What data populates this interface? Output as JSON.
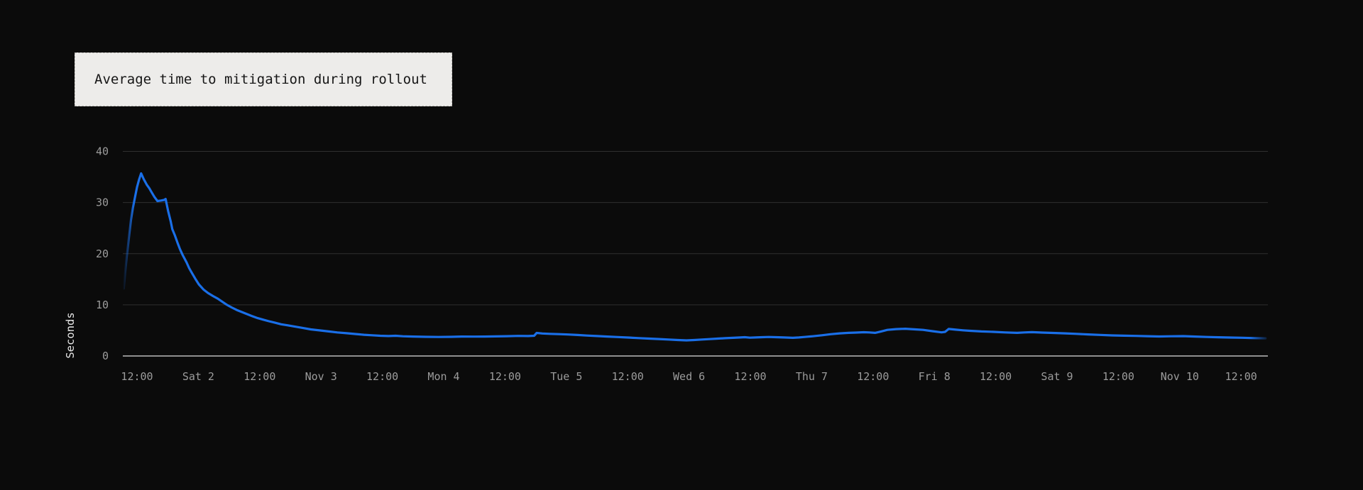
{
  "title_card": {
    "title": "Average time to mitigation during rollout"
  },
  "colors": {
    "background": "#0b0b0b",
    "line": "#1a6fe8",
    "gridline": "#2f2f2f",
    "axis_line": "#8f8f8f",
    "tick_text": "#9c9c9c",
    "axis_title_text": "#e8e8e8",
    "title_card_bg": "#edecea",
    "title_text": "#161616"
  },
  "chart_data": {
    "type": "line",
    "title": "Average time to mitigation during rollout",
    "xlabel": "",
    "ylabel": "Seconds",
    "ylim": [
      0,
      40
    ],
    "grid": true,
    "legend_position": "none",
    "y_ticks": [
      0,
      10,
      20,
      30,
      40
    ],
    "x_unit": "hours_since_first_tick",
    "x_tick_interval_hours": 12,
    "xlim": [
      -2.8,
      221.2
    ],
    "x_ticks": [
      {
        "t": 0,
        "label": "12:00"
      },
      {
        "t": 12,
        "label": "Sat 2"
      },
      {
        "t": 24,
        "label": "12:00"
      },
      {
        "t": 36,
        "label": "Nov 3"
      },
      {
        "t": 48,
        "label": "12:00"
      },
      {
        "t": 60,
        "label": "Mon 4"
      },
      {
        "t": 72,
        "label": "12:00"
      },
      {
        "t": 84,
        "label": "Tue 5"
      },
      {
        "t": 96,
        "label": "12:00"
      },
      {
        "t": 108,
        "label": "Wed 6"
      },
      {
        "t": 120,
        "label": "12:00"
      },
      {
        "t": 132,
        "label": "Thu 7"
      },
      {
        "t": 144,
        "label": "12:00"
      },
      {
        "t": 156,
        "label": "Fri 8"
      },
      {
        "t": 168,
        "label": "12:00"
      },
      {
        "t": 180,
        "label": "Sat 9"
      },
      {
        "t": 192,
        "label": "12:00"
      },
      {
        "t": 204,
        "label": "Nov 10"
      },
      {
        "t": 216,
        "label": "12:00"
      }
    ],
    "series": [
      {
        "name": "average-time-to-mitigation",
        "unit": "seconds",
        "color": "#1a6fe8",
        "points": [
          [
            -2.6,
            13.2
          ],
          [
            -2.3,
            16.5
          ],
          [
            -2.0,
            19.5
          ],
          [
            -1.6,
            23
          ],
          [
            -1.2,
            26.5
          ],
          [
            -0.8,
            29
          ],
          [
            -0.4,
            31
          ],
          [
            0,
            33
          ],
          [
            0.4,
            34.5
          ],
          [
            0.8,
            35.7
          ],
          [
            1.3,
            34.6
          ],
          [
            1.9,
            33.5
          ],
          [
            2.4,
            32.8
          ],
          [
            2.8,
            32.1
          ],
          [
            3.4,
            31.1
          ],
          [
            4,
            30.3
          ],
          [
            4.7,
            30.4
          ],
          [
            5.3,
            30.5
          ],
          [
            5.6,
            30.7
          ],
          [
            6.1,
            28.3
          ],
          [
            6.6,
            26.3
          ],
          [
            6.9,
            24.8
          ],
          [
            7.4,
            23.6
          ],
          [
            7.9,
            22.2
          ],
          [
            8.4,
            20.9
          ],
          [
            8.9,
            19.8
          ],
          [
            9.7,
            18.3
          ],
          [
            10.2,
            17.2
          ],
          [
            10.7,
            16.3
          ],
          [
            11.4,
            15.1
          ],
          [
            12.1,
            14.0
          ],
          [
            13,
            13.0
          ],
          [
            13.9,
            12.3
          ],
          [
            14.9,
            11.7
          ],
          [
            15.8,
            11.2
          ],
          [
            16.7,
            10.6
          ],
          [
            17.6,
            10.0
          ],
          [
            18.5,
            9.5
          ],
          [
            19.5,
            9.0
          ],
          [
            20.5,
            8.6
          ],
          [
            21.5,
            8.2
          ],
          [
            22.5,
            7.8
          ],
          [
            23.6,
            7.4
          ],
          [
            24.7,
            7.1
          ],
          [
            25.8,
            6.8
          ],
          [
            27,
            6.5
          ],
          [
            28.2,
            6.2
          ],
          [
            29.4,
            6.0
          ],
          [
            30.6,
            5.8
          ],
          [
            32.3,
            5.5
          ],
          [
            34,
            5.2
          ],
          [
            35.7,
            5.0
          ],
          [
            37.5,
            4.8
          ],
          [
            39.2,
            4.6
          ],
          [
            41,
            4.45
          ],
          [
            42.7,
            4.3
          ],
          [
            44.4,
            4.15
          ],
          [
            46,
            4.05
          ],
          [
            47.6,
            3.95
          ],
          [
            49.2,
            3.9
          ],
          [
            50.6,
            3.95
          ],
          [
            52,
            3.85
          ],
          [
            54,
            3.8
          ],
          [
            56.5,
            3.75
          ],
          [
            59,
            3.72
          ],
          [
            61.5,
            3.75
          ],
          [
            63.5,
            3.8
          ],
          [
            66,
            3.78
          ],
          [
            68,
            3.8
          ],
          [
            70,
            3.83
          ],
          [
            72.3,
            3.87
          ],
          [
            74.6,
            3.92
          ],
          [
            76.5,
            3.9
          ],
          [
            77.7,
            3.95
          ],
          [
            78.2,
            4.5
          ],
          [
            79.3,
            4.4
          ],
          [
            80.8,
            4.32
          ],
          [
            82.5,
            4.27
          ],
          [
            84.3,
            4.2
          ],
          [
            86.2,
            4.1
          ],
          [
            88,
            4.0
          ],
          [
            90,
            3.9
          ],
          [
            92,
            3.8
          ],
          [
            94.1,
            3.7
          ],
          [
            96.1,
            3.6
          ],
          [
            98.2,
            3.5
          ],
          [
            100.2,
            3.4
          ],
          [
            102.1,
            3.32
          ],
          [
            104,
            3.22
          ],
          [
            105.8,
            3.12
          ],
          [
            107.5,
            3.05
          ],
          [
            109,
            3.12
          ],
          [
            110.5,
            3.22
          ],
          [
            112,
            3.3
          ],
          [
            113.6,
            3.4
          ],
          [
            115.1,
            3.48
          ],
          [
            116.6,
            3.55
          ],
          [
            118,
            3.62
          ],
          [
            118.9,
            3.68
          ],
          [
            119.9,
            3.58
          ],
          [
            121,
            3.62
          ],
          [
            122.3,
            3.68
          ],
          [
            123.6,
            3.72
          ],
          [
            125,
            3.68
          ],
          [
            126.6,
            3.62
          ],
          [
            128.3,
            3.55
          ],
          [
            129.5,
            3.62
          ],
          [
            130.6,
            3.72
          ],
          [
            132.2,
            3.85
          ],
          [
            134,
            4.05
          ],
          [
            135.7,
            4.25
          ],
          [
            137.5,
            4.42
          ],
          [
            139.2,
            4.52
          ],
          [
            140.7,
            4.57
          ],
          [
            142.2,
            4.65
          ],
          [
            143.3,
            4.6
          ],
          [
            144.4,
            4.52
          ],
          [
            145.6,
            4.8
          ],
          [
            146.8,
            5.1
          ],
          [
            148.5,
            5.25
          ],
          [
            150.3,
            5.32
          ],
          [
            152,
            5.22
          ],
          [
            153.8,
            5.1
          ],
          [
            155.6,
            4.85
          ],
          [
            157.4,
            4.62
          ],
          [
            158.1,
            4.72
          ],
          [
            158.8,
            5.28
          ],
          [
            160.2,
            5.15
          ],
          [
            161.6,
            5.02
          ],
          [
            163,
            4.92
          ],
          [
            165.2,
            4.8
          ],
          [
            167.6,
            4.72
          ],
          [
            169.9,
            4.6
          ],
          [
            172.2,
            4.52
          ],
          [
            173.6,
            4.6
          ],
          [
            175.1,
            4.66
          ],
          [
            177.1,
            4.58
          ],
          [
            179.2,
            4.5
          ],
          [
            181.6,
            4.42
          ],
          [
            183.8,
            4.32
          ],
          [
            186.1,
            4.22
          ],
          [
            188.4,
            4.12
          ],
          [
            190.8,
            4.02
          ],
          [
            193.1,
            3.97
          ],
          [
            195.4,
            3.92
          ],
          [
            197.7,
            3.87
          ],
          [
            200,
            3.82
          ],
          [
            202.3,
            3.86
          ],
          [
            204.7,
            3.88
          ],
          [
            207,
            3.8
          ],
          [
            209.3,
            3.72
          ],
          [
            211.6,
            3.66
          ],
          [
            213.9,
            3.6
          ],
          [
            216.2,
            3.56
          ],
          [
            218.6,
            3.5
          ],
          [
            220.8,
            3.45
          ]
        ]
      }
    ]
  }
}
